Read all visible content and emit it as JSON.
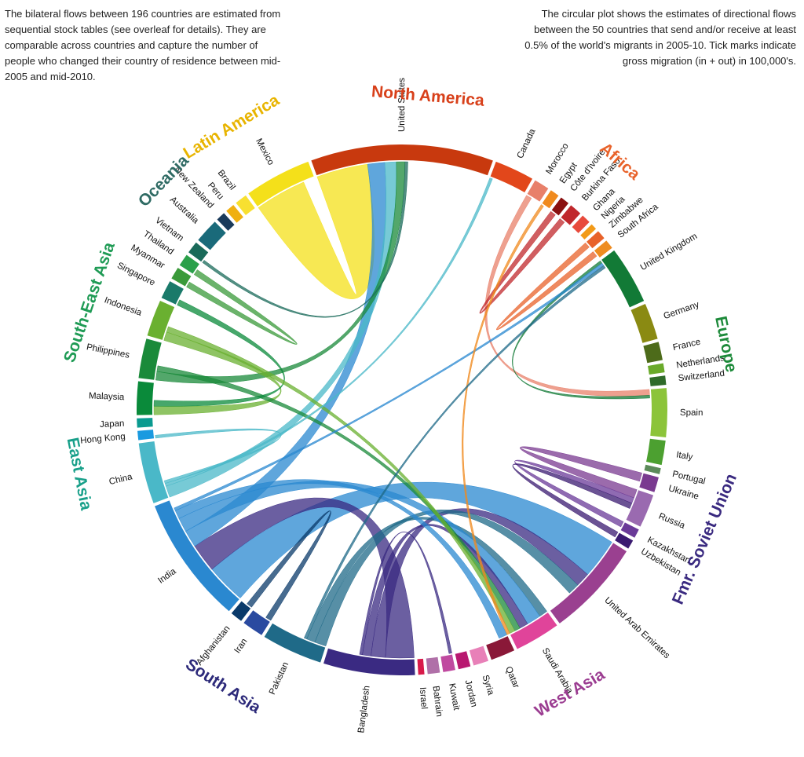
{
  "chart_data": {
    "type": "chord",
    "intro_left": "The bilateral flows between 196 countries are estimated from sequential stock tables (see overleaf for details). They are comparable across countries and capture the number of people who changed their country of residence between mid-2005 and mid-2010.",
    "intro_right": "The circular plot shows the estimates of directional flows between the 50 countries that send and/or receive at least 0.5% of the world's migrants in 2005-10. Tick marks indicate gross migration (in + out) in 100,000's.",
    "regions": [
      {
        "name": "North America",
        "color": "#d8401a"
      },
      {
        "name": "Africa",
        "color": "#e8622a"
      },
      {
        "name": "Europe",
        "color": "#1d8a3a"
      },
      {
        "name": "Fmr. Soviet Union",
        "color": "#3a2a80"
      },
      {
        "name": "West Asia",
        "color": "#9b3c91"
      },
      {
        "name": "South Asia",
        "color": "#2d2a7a"
      },
      {
        "name": "East Asia",
        "color": "#19a08a"
      },
      {
        "name": "South-East Asia",
        "color": "#1f9b55"
      },
      {
        "name": "Oceania",
        "color": "#2f6b64"
      },
      {
        "name": "Latin America",
        "color": "#e8b400"
      }
    ],
    "countries": [
      {
        "name": "United States",
        "region": "North America",
        "value": 60,
        "color": "#c8390e"
      },
      {
        "name": "Canada",
        "region": "North America",
        "value": 13,
        "color": "#e2471b"
      },
      {
        "name": "Morocco",
        "region": "Africa",
        "value": 5,
        "color": "#e8806a"
      },
      {
        "name": "Egypt",
        "region": "Africa",
        "value": 3,
        "color": "#f08a1e"
      },
      {
        "name": "Côte d'Ivoire",
        "region": "Africa",
        "value": 3,
        "color": "#8a1010"
      },
      {
        "name": "Burkina Faso",
        "region": "Africa",
        "value": 4,
        "color": "#c0282c"
      },
      {
        "name": "Ghana",
        "region": "Africa",
        "value": 3,
        "color": "#e84a3c"
      },
      {
        "name": "Nigeria",
        "region": "Africa",
        "value": 2,
        "color": "#f29a18"
      },
      {
        "name": "Zimbabwe",
        "region": "Africa",
        "value": 3,
        "color": "#e8622a"
      },
      {
        "name": "South Africa",
        "region": "Africa",
        "value": 3,
        "color": "#ee8c20"
      },
      {
        "name": "United Kingdom",
        "region": "Europe",
        "value": 19,
        "color": "#127a36"
      },
      {
        "name": "Germany",
        "region": "Europe",
        "value": 12,
        "color": "#8a8a12"
      },
      {
        "name": "France",
        "region": "Europe",
        "value": 6,
        "color": "#4d6b1a"
      },
      {
        "name": "Netherlands",
        "region": "Europe",
        "value": 3,
        "color": "#6aaa2a"
      },
      {
        "name": "Switzerland",
        "region": "Europe",
        "value": 3,
        "color": "#2f6b2a"
      },
      {
        "name": "Spain",
        "region": "Europe",
        "value": 16,
        "color": "#8cc43a"
      },
      {
        "name": "Italy",
        "region": "Europe",
        "value": 8,
        "color": "#4ca030"
      },
      {
        "name": "Portugal",
        "region": "Europe",
        "value": 2,
        "color": "#5c8a5a"
      },
      {
        "name": "Ukraine",
        "region": "Fmr. Soviet Union",
        "value": 5,
        "color": "#7a3a90"
      },
      {
        "name": "Russia",
        "region": "Fmr. Soviet Union",
        "value": 11,
        "color": "#9a6ab0"
      },
      {
        "name": "Kazakhstan",
        "region": "Fmr. Soviet Union",
        "value": 3,
        "color": "#6a3a98"
      },
      {
        "name": "Uzbekistan",
        "region": "Fmr. Soviet Union",
        "value": 3,
        "color": "#3a1a70"
      },
      {
        "name": "United Arab Emirates",
        "region": "West Asia",
        "value": 32,
        "color": "#9a4090"
      },
      {
        "name": "Saudi Arabia",
        "region": "West Asia",
        "value": 15,
        "color": "#e0449a"
      },
      {
        "name": "Qatar",
        "region": "West Asia",
        "value": 8,
        "color": "#8a1838"
      },
      {
        "name": "Syria",
        "region": "West Asia",
        "value": 5,
        "color": "#e880b8"
      },
      {
        "name": "Jordan",
        "region": "West Asia",
        "value": 4,
        "color": "#b81870"
      },
      {
        "name": "Kuwait",
        "region": "West Asia",
        "value": 4,
        "color": "#c04aa0"
      },
      {
        "name": "Bahrain",
        "region": "West Asia",
        "value": 4,
        "color": "#b070a8"
      },
      {
        "name": "Israel",
        "region": "West Asia",
        "value": 2,
        "color": "#d81a4a"
      },
      {
        "name": "Bangladesh",
        "region": "South Asia",
        "value": 30,
        "color": "#3a2a82"
      },
      {
        "name": "Pakistan",
        "region": "South Asia",
        "value": 20,
        "color": "#1f6a88"
      },
      {
        "name": "Iran",
        "region": "South Asia",
        "value": 7,
        "color": "#2a4aa0"
      },
      {
        "name": "Afghanistan",
        "region": "South Asia",
        "value": 4,
        "color": "#0a3a6a"
      },
      {
        "name": "India",
        "region": "South Asia",
        "value": 42,
        "color": "#2a88d0"
      },
      {
        "name": "China",
        "region": "East Asia",
        "value": 20,
        "color": "#4ab8c8"
      },
      {
        "name": "Hong Kong",
        "region": "East Asia",
        "value": 3,
        "color": "#1a9ae0"
      },
      {
        "name": "Japan",
        "region": "East Asia",
        "value": 3,
        "color": "#0a9a90"
      },
      {
        "name": "Malaysia",
        "region": "South-East Asia",
        "value": 11,
        "color": "#0a8a3a"
      },
      {
        "name": "Philippines",
        "region": "South-East Asia",
        "value": 13,
        "color": "#1a8a3a"
      },
      {
        "name": "Indonesia",
        "region": "South-East Asia",
        "value": 12,
        "color": "#6ab030"
      },
      {
        "name": "Singapore",
        "region": "South-East Asia",
        "value": 6,
        "color": "#1a7a6a"
      },
      {
        "name": "Myanmar",
        "region": "South-East Asia",
        "value": 4,
        "color": "#3a9a3a"
      },
      {
        "name": "Thailand",
        "region": "South-East Asia",
        "value": 4,
        "color": "#2aa04a"
      },
      {
        "name": "Vietnam",
        "region": "South-East Asia",
        "value": 4,
        "color": "#1a6a5a"
      },
      {
        "name": "Australia",
        "region": "Oceania",
        "value": 8,
        "color": "#1a6a7a"
      },
      {
        "name": "New Zealand",
        "region": "Oceania",
        "value": 3,
        "color": "#1a3a5a"
      },
      {
        "name": "Peru",
        "region": "Latin America",
        "value": 3,
        "color": "#f0b010"
      },
      {
        "name": "Brazil",
        "region": "Latin America",
        "value": 4,
        "color": "#f8e030"
      },
      {
        "name": "Mexico",
        "region": "Latin America",
        "value": 22,
        "color": "#f4e01a"
      }
    ],
    "flows": [
      {
        "from": "Mexico",
        "to": "United States",
        "value": 18
      },
      {
        "from": "India",
        "to": "United Arab Emirates",
        "value": 14
      },
      {
        "from": "Bangladesh",
        "to": "India",
        "value": 10
      },
      {
        "from": "India",
        "to": "United States",
        "value": 6
      },
      {
        "from": "China",
        "to": "United States",
        "value": 4
      },
      {
        "from": "Philippines",
        "to": "United States",
        "value": 3
      },
      {
        "from": "Bangladesh",
        "to": "United Arab Emirates",
        "value": 5
      },
      {
        "from": "Pakistan",
        "to": "United Arab Emirates",
        "value": 4
      },
      {
        "from": "Pakistan",
        "to": "Saudi Arabia",
        "value": 3
      },
      {
        "from": "India",
        "to": "Saudi Arabia",
        "value": 5
      },
      {
        "from": "Bangladesh",
        "to": "Saudi Arabia",
        "value": 3
      },
      {
        "from": "Morocco",
        "to": "Spain",
        "value": 2
      },
      {
        "from": "Ukraine",
        "to": "Russia",
        "value": 3
      },
      {
        "from": "Kazakhstan",
        "to": "Russia",
        "value": 2
      },
      {
        "from": "Uzbekistan",
        "to": "Russia",
        "value": 2
      },
      {
        "from": "Indonesia",
        "to": "Malaysia",
        "value": 3
      },
      {
        "from": "Myanmar",
        "to": "Thailand",
        "value": 2
      },
      {
        "from": "Afghanistan",
        "to": "Iran",
        "value": 2
      },
      {
        "from": "Zimbabwe",
        "to": "South Africa",
        "value": 2
      },
      {
        "from": "Burkina Faso",
        "to": "Côte d'Ivoire",
        "value": 2
      },
      {
        "from": "Philippines",
        "to": "Saudi Arabia",
        "value": 2
      },
      {
        "from": "India",
        "to": "Qatar",
        "value": 3
      },
      {
        "from": "Malaysia",
        "to": "Singapore",
        "value": 2
      },
      {
        "from": "Indonesia",
        "to": "Saudi Arabia",
        "value": 2
      },
      {
        "from": "China",
        "to": "Canada",
        "value": 1
      },
      {
        "from": "United Kingdom",
        "to": "Spain",
        "value": 1
      },
      {
        "from": "China",
        "to": "Hong Kong",
        "value": 1
      },
      {
        "from": "Vietnam",
        "to": "United States",
        "value": 1
      },
      {
        "from": "India",
        "to": "United Kingdom",
        "value": 1
      },
      {
        "from": "Egypt",
        "to": "Saudi Arabia",
        "value": 1
      },
      {
        "from": "Pakistan",
        "to": "United Kingdom",
        "value": 1
      },
      {
        "from": "Bangladesh",
        "to": "Kuwait",
        "value": 1
      }
    ]
  }
}
